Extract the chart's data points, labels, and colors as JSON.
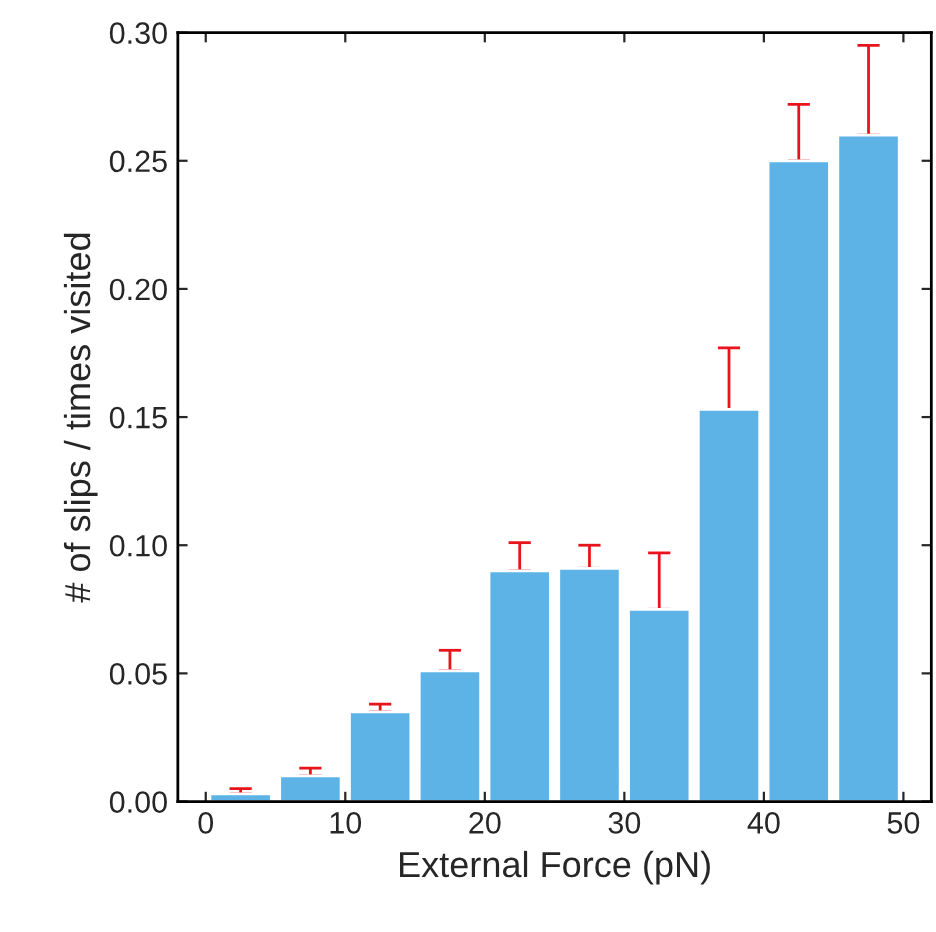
{
  "chart_data": {
    "type": "bar",
    "xlabel": "External Force (pN)",
    "ylabel": "# of slips / times visited",
    "x": [
      2.5,
      7.5,
      12.5,
      17.5,
      22.5,
      27.5,
      32.5,
      37.5,
      42.5,
      47.5
    ],
    "values": [
      0.003,
      0.01,
      0.035,
      0.051,
      0.09,
      0.091,
      0.075,
      0.153,
      0.25,
      0.26
    ],
    "errors": [
      [
        0.003,
        0.005
      ],
      [
        0.01,
        0.013
      ],
      [
        0.035,
        0.038
      ],
      [
        0.051,
        0.059
      ],
      [
        0.09,
        0.101
      ],
      [
        0.091,
        0.1
      ],
      [
        0.075,
        0.097
      ],
      [
        0.153,
        0.177
      ],
      [
        0.25,
        0.272
      ],
      [
        0.26,
        0.295
      ]
    ],
    "color": "#5db3e6",
    "xlim": [
      -2,
      52
    ],
    "xticks": [
      0,
      10,
      20,
      30,
      40,
      50
    ],
    "ylim": [
      0,
      0.3
    ],
    "yticks": [
      {
        "value": 0,
        "label": "0.00"
      },
      {
        "value": 0.05,
        "label": "0.05"
      },
      {
        "value": 0.1,
        "label": "0.10"
      },
      {
        "value": 0.15,
        "label": "0.15"
      },
      {
        "value": 0.2,
        "label": "0.20"
      },
      {
        "value": 0.25,
        "label": "0.25"
      },
      {
        "value": 0.3,
        "label": "0.30"
      }
    ],
    "grid": false,
    "legend": false
  }
}
